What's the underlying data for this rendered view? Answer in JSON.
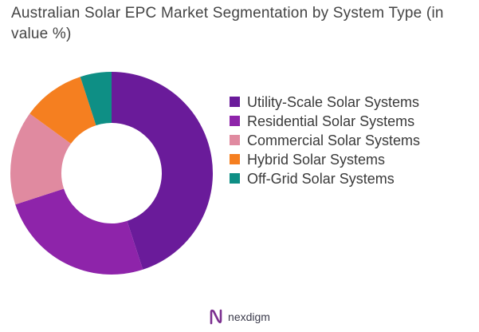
{
  "chart_data": {
    "type": "pie",
    "title": "Australian Solar EPC Market Segmentation by System Type (in value %)",
    "categories": [
      "Utility-Scale Solar Systems",
      "Residential Solar Systems",
      "Commercial Solar Systems",
      "Hybrid Solar Systems",
      "Off-Grid Solar Systems"
    ],
    "values": [
      45,
      25,
      15,
      10,
      5
    ],
    "colors": [
      "#6a1b9a",
      "#8e24aa",
      "#e08aa0",
      "#f57f20",
      "#0e8f85"
    ],
    "donut": true,
    "legend_position": "right"
  },
  "footer": {
    "brand": "nexdigm",
    "logo_icon": "nexdigm-logo-icon"
  }
}
